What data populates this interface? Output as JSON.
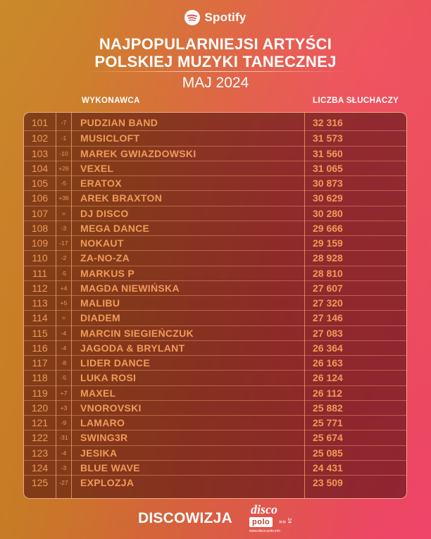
{
  "brand": {
    "name": "Spotify",
    "icon": "spotify-icon"
  },
  "header": {
    "title_line1": "NAJPOPULARNIEJSI ARTYŚCI",
    "title_line2": "POLSKIEJ MUZYKI TANECZNEJ",
    "period": "MAJ 2024"
  },
  "columns": {
    "artist": "WYKONAWCA",
    "listeners": "LICZBA SŁUCHACZY"
  },
  "rows": [
    {
      "rank": "101",
      "change": "-7",
      "artist": "PUDZIAN BAND",
      "listeners": "32 316"
    },
    {
      "rank": "102",
      "change": "-1",
      "artist": "MUSICLOFT",
      "listeners": "31 573"
    },
    {
      "rank": "103",
      "change": "-10",
      "artist": "MAREK GWIAZDOWSKI",
      "listeners": "31 560"
    },
    {
      "rank": "104",
      "change": "+26",
      "artist": "VEXEL",
      "listeners": "31 065"
    },
    {
      "rank": "105",
      "change": "-5",
      "artist": "ERATOX",
      "listeners": "30 873"
    },
    {
      "rank": "106",
      "change": "+36",
      "artist": "AREK BRAXTON",
      "listeners": "30 629"
    },
    {
      "rank": "107",
      "change": "=",
      "artist": "DJ DISCO",
      "listeners": "30 280"
    },
    {
      "rank": "108",
      "change": "-3",
      "artist": "MEGA DANCE",
      "listeners": "29 666"
    },
    {
      "rank": "109",
      "change": "-17",
      "artist": "NOKAUT",
      "listeners": "29 159"
    },
    {
      "rank": "110",
      "change": "-2",
      "artist": "ZA-NO-ZA",
      "listeners": "28 928"
    },
    {
      "rank": "111",
      "change": "-5",
      "artist": "MARKUS P",
      "listeners": "28 810"
    },
    {
      "rank": "112",
      "change": "+4",
      "artist": "MAGDA NIEWIŃSKA",
      "listeners": "27 607"
    },
    {
      "rank": "113",
      "change": "+5",
      "artist": "MALIBU",
      "listeners": "27 320"
    },
    {
      "rank": "114",
      "change": "=",
      "artist": "DIADEM",
      "listeners": "27 146"
    },
    {
      "rank": "115",
      "change": "-4",
      "artist": "MARCIN SIEGIEŃCZUK",
      "listeners": "27 083"
    },
    {
      "rank": "116",
      "change": "-4",
      "artist": "JAGODA & BRYLANT",
      "listeners": "26 364"
    },
    {
      "rank": "117",
      "change": "-8",
      "artist": "LIDER DANCE",
      "listeners": "26 163"
    },
    {
      "rank": "118",
      "change": "-5",
      "artist": "LUKA ROSI",
      "listeners": "26 124"
    },
    {
      "rank": "119",
      "change": "+7",
      "artist": "MAXEL",
      "listeners": "26 112"
    },
    {
      "rank": "120",
      "change": "+3",
      "artist": "VNOROVSKI",
      "listeners": "25 882"
    },
    {
      "rank": "121",
      "change": "-9",
      "artist": "LAMARO",
      "listeners": "25 771"
    },
    {
      "rank": "122",
      "change": "-31",
      "artist": "SWING3R",
      "listeners": "25 674"
    },
    {
      "rank": "123",
      "change": "-4",
      "artist": "JESIKA",
      "listeners": "25 085"
    },
    {
      "rank": "124",
      "change": "-3",
      "artist": "BLUE WAVE",
      "listeners": "24 431"
    },
    {
      "rank": "125",
      "change": "-27",
      "artist": "EXPLOZJA",
      "listeners": "23 509"
    }
  ],
  "footer": {
    "discowizja": "DISCOWIZJA",
    "logo_top": "disco",
    "logo_mid": "polo",
    "logo_arrows": "»»",
    "logo_num": "24",
    "logo_url": "www.disco-polo.info"
  },
  "colors": {
    "text_accent": "#f19a5a",
    "table_bg": "#4a0a0a"
  }
}
